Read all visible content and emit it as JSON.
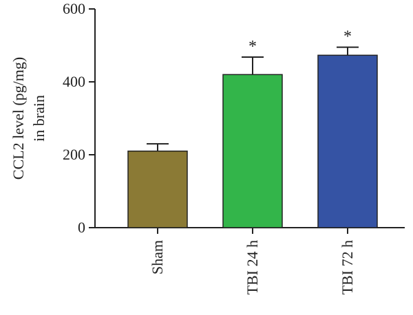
{
  "chart_data": {
    "type": "bar",
    "ylabel_line1": "CCL2 level (pg/mg)",
    "ylabel_line2": "in brain",
    "categories": [
      "Sham",
      "TBI 24 h",
      "TBI 72 h"
    ],
    "values": [
      210,
      420,
      473
    ],
    "errors": [
      20,
      48,
      22
    ],
    "significance": [
      "",
      "*",
      "*"
    ],
    "colors": [
      "#8b7a35",
      "#33b54a",
      "#3553a4"
    ],
    "ylim": [
      0,
      600
    ],
    "yticks": [
      "0",
      "200",
      "400",
      "600"
    ],
    "grid": false,
    "legend": "none"
  }
}
